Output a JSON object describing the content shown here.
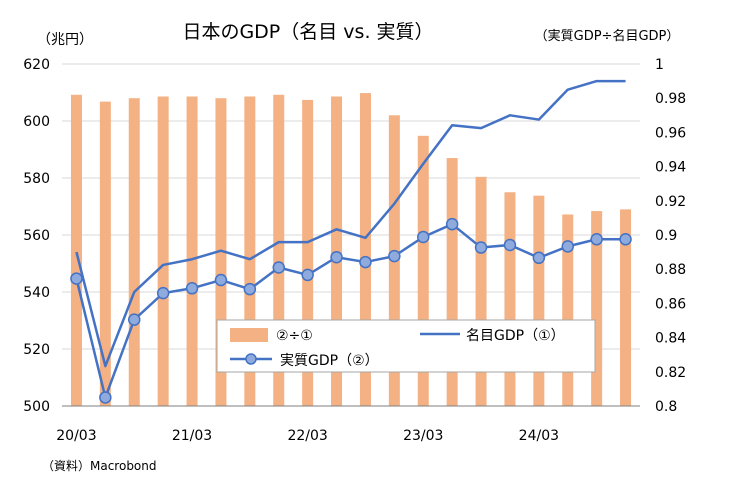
{
  "chart_data": {
    "type": "bar",
    "title": "日本のGDP（名目 vs. 実質）",
    "left_unit": "（兆円）",
    "right_unit": "（実質GDP÷名目GDP）",
    "source": "（資料）Macrobond",
    "x_tick_labels": [
      "20/03",
      "21/03",
      "22/03",
      "23/03",
      "24/03"
    ],
    "x_tick_index": [
      0,
      4,
      8,
      12,
      16
    ],
    "n_periods": 20,
    "left_axis": {
      "min": 500,
      "max": 620,
      "step": 20,
      "tick_labels": [
        "500",
        "520",
        "540",
        "560",
        "580",
        "600",
        "620"
      ]
    },
    "right_axis": {
      "min": 0.8,
      "max": 1.0,
      "step": 0.02,
      "tick_labels": [
        "0.8",
        "0.82",
        "0.84",
        "0.86",
        "0.88",
        "0.9",
        "0.92",
        "0.94",
        "0.96",
        "0.98",
        "1"
      ]
    },
    "series": [
      {
        "name": "②÷①",
        "type": "bar",
        "axis": "right",
        "color": "#F4B183",
        "values": [
          0.982,
          0.978,
          0.98,
          0.981,
          0.981,
          0.98,
          0.981,
          0.982,
          0.979,
          0.981,
          0.983,
          0.97,
          0.958,
          0.945,
          0.934,
          0.925,
          0.923,
          0.912,
          0.914,
          0.915
        ]
      },
      {
        "name": "名目GDP（①）",
        "type": "line",
        "axis": "left",
        "color": "#4472C4",
        "values": [
          554.0,
          514.0,
          540.0,
          549.5,
          551.5,
          554.5,
          551.5,
          557.5,
          557.5,
          562.0,
          559.0,
          571.0,
          585.0,
          598.5,
          597.5,
          602.0,
          600.5,
          611.0,
          614.0,
          614.0
        ]
      },
      {
        "name": "実質GDP（②）",
        "type": "line",
        "axis": "left",
        "color": "#4472C4",
        "marker_fill": "#8FAADC",
        "values": [
          544.7,
          503.0,
          530.3,
          539.6,
          541.3,
          544.2,
          541.0,
          548.6,
          546.0,
          552.2,
          550.5,
          552.6,
          559.3,
          563.8,
          555.6,
          556.5,
          552.0,
          556.0,
          558.5,
          558.5
        ]
      }
    ],
    "legend": {
      "position": "bottom-center",
      "items": [
        "②÷①",
        "名目GDP（①）",
        "実質GDP（②）"
      ]
    }
  }
}
